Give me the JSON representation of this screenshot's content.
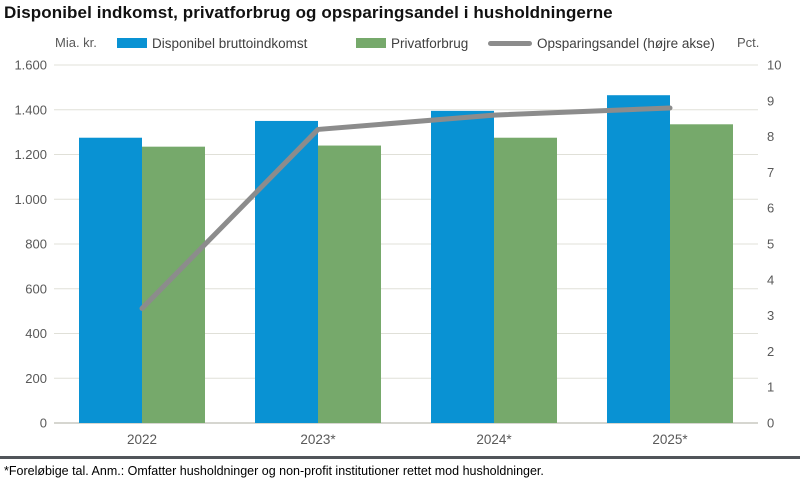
{
  "title": "Disponibel indkomst, privatforbrug og opsparingsandel i husholdningerne",
  "footnote": "*Foreløbige tal. Anm.: Omfatter husholdninger og non-profit institutioner rettet mod husholdninger.",
  "colors": {
    "income_bar": "#0992d3",
    "consumption_bar": "#76a96b",
    "savings_line": "#8c8c8c",
    "gridline": "#e0e0d8",
    "zero_axis": "#c8c8c0",
    "tick_label": "#595959",
    "footer_rule": "#51555a"
  },
  "chart_data": {
    "type": "bar",
    "subtype": "grouped bars with secondary-axis line",
    "title": "Disponibel indkomst, privatforbrug og opsparingsandel i husholdningerne",
    "categories": [
      "2022",
      "2023*",
      "2024*",
      "2025*"
    ],
    "series": [
      {
        "name": "Disponibel bruttoindkomst",
        "type": "bar",
        "axis": "left",
        "color": "#0992d3",
        "values": [
          1275,
          1350,
          1395,
          1465
        ]
      },
      {
        "name": "Privatforbrug",
        "type": "bar",
        "axis": "left",
        "color": "#76a96b",
        "values": [
          1235,
          1240,
          1275,
          1335
        ]
      },
      {
        "name": "Opsparingsandel (højre akse)",
        "type": "line",
        "axis": "right",
        "color": "#8c8c8c",
        "values": [
          3.2,
          8.2,
          8.6,
          8.8
        ]
      }
    ],
    "left_axis": {
      "unit": "Mia. kr.",
      "min": 0,
      "max": 1600,
      "step": 200,
      "ticks": [
        "0",
        "200",
        "400",
        "600",
        "800",
        "1.000",
        "1.200",
        "1.400",
        "1.600"
      ]
    },
    "right_axis": {
      "unit": "Pct.",
      "min": 0,
      "max": 10,
      "step": 1,
      "ticks": [
        "0",
        "1",
        "2",
        "3",
        "4",
        "5",
        "6",
        "7",
        "8",
        "9",
        "10"
      ]
    },
    "grid": true,
    "legend_position": "top"
  }
}
